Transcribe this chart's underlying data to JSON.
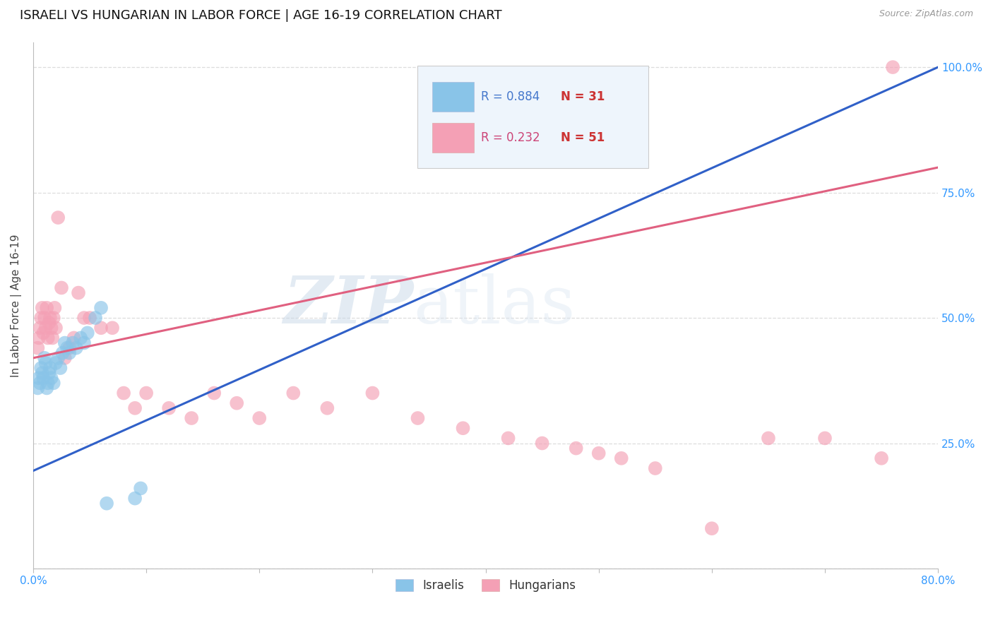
{
  "title": "ISRAELI VS HUNGARIAN IN LABOR FORCE | AGE 16-19 CORRELATION CHART",
  "source": "Source: ZipAtlas.com",
  "ylabel_label": "In Labor Force | Age 16-19",
  "xlim": [
    0.0,
    0.8
  ],
  "ylim": [
    0.0,
    1.05
  ],
  "xticks": [
    0.0,
    0.1,
    0.2,
    0.3,
    0.4,
    0.5,
    0.6,
    0.7,
    0.8
  ],
  "xtick_labels": [
    "0.0%",
    "",
    "",
    "",
    "",
    "",
    "",
    "",
    "80.0%"
  ],
  "yticks": [
    0.0,
    0.25,
    0.5,
    0.75,
    1.0
  ],
  "ytick_labels": [
    "",
    "25.0%",
    "50.0%",
    "75.0%",
    "100.0%"
  ],
  "israeli_R": 0.884,
  "israeli_N": 31,
  "hungarian_R": 0.232,
  "hungarian_N": 51,
  "israeli_color": "#89c4e8",
  "hungarian_color": "#f4a0b5",
  "israeli_line_color": "#3060c8",
  "hungarian_line_color": "#e06080",
  "israeli_x": [
    0.004,
    0.005,
    0.006,
    0.007,
    0.008,
    0.009,
    0.01,
    0.011,
    0.012,
    0.013,
    0.014,
    0.015,
    0.016,
    0.018,
    0.02,
    0.022,
    0.024,
    0.026,
    0.028,
    0.03,
    0.032,
    0.035,
    0.038,
    0.042,
    0.045,
    0.048,
    0.055,
    0.06,
    0.065,
    0.09,
    0.095
  ],
  "israeli_y": [
    0.36,
    0.38,
    0.37,
    0.4,
    0.39,
    0.38,
    0.42,
    0.41,
    0.36,
    0.37,
    0.39,
    0.4,
    0.38,
    0.37,
    0.41,
    0.42,
    0.4,
    0.43,
    0.45,
    0.44,
    0.43,
    0.45,
    0.44,
    0.46,
    0.45,
    0.47,
    0.5,
    0.52,
    0.13,
    0.14,
    0.16
  ],
  "hungarian_x": [
    0.004,
    0.005,
    0.006,
    0.007,
    0.008,
    0.009,
    0.01,
    0.011,
    0.012,
    0.013,
    0.014,
    0.015,
    0.016,
    0.017,
    0.018,
    0.019,
    0.02,
    0.022,
    0.025,
    0.028,
    0.032,
    0.036,
    0.04,
    0.045,
    0.05,
    0.06,
    0.07,
    0.08,
    0.09,
    0.1,
    0.12,
    0.14,
    0.16,
    0.18,
    0.2,
    0.23,
    0.26,
    0.3,
    0.34,
    0.38,
    0.42,
    0.45,
    0.48,
    0.5,
    0.52,
    0.55,
    0.6,
    0.65,
    0.7,
    0.75,
    0.76
  ],
  "hungarian_y": [
    0.44,
    0.46,
    0.48,
    0.5,
    0.52,
    0.47,
    0.5,
    0.48,
    0.52,
    0.46,
    0.49,
    0.5,
    0.48,
    0.46,
    0.5,
    0.52,
    0.48,
    0.7,
    0.56,
    0.42,
    0.44,
    0.46,
    0.55,
    0.5,
    0.5,
    0.48,
    0.48,
    0.35,
    0.32,
    0.35,
    0.32,
    0.3,
    0.35,
    0.33,
    0.3,
    0.35,
    0.32,
    0.35,
    0.3,
    0.28,
    0.26,
    0.25,
    0.24,
    0.23,
    0.22,
    0.2,
    0.08,
    0.26,
    0.26,
    0.22,
    1.0
  ],
  "grid_color": "#dddddd",
  "background_color": "#ffffff",
  "watermark_zip": "ZIP",
  "watermark_atlas": "atlas",
  "legend_box_color": "#eef5fc"
}
